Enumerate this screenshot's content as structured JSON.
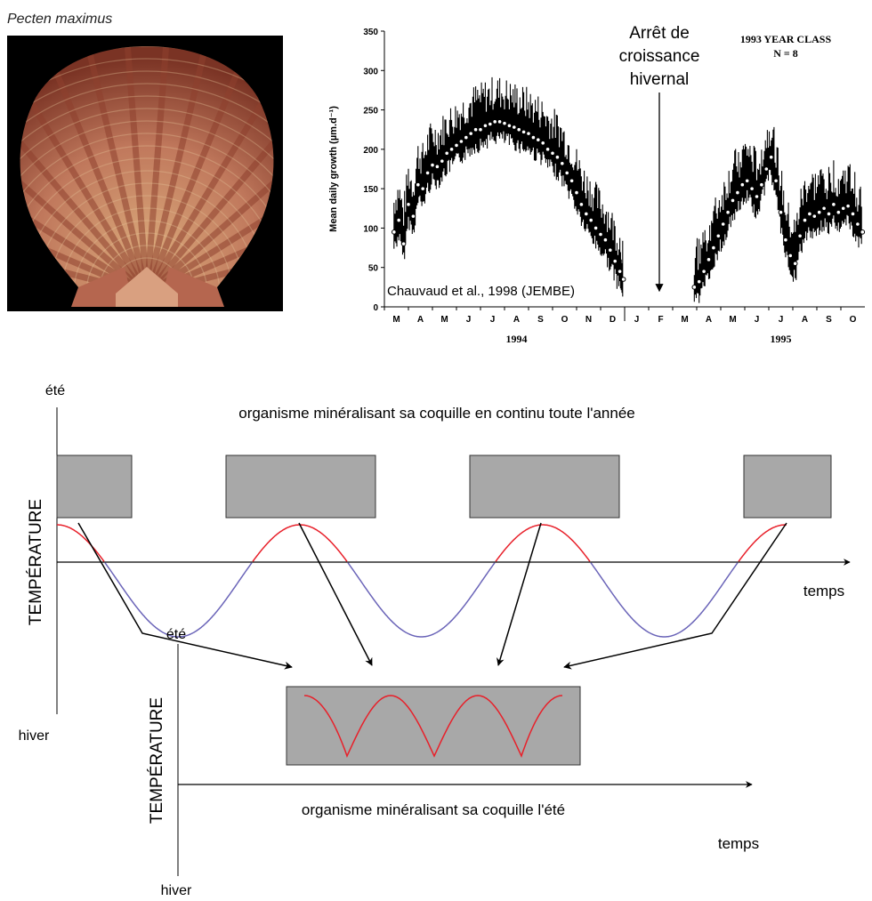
{
  "species": {
    "name": "Pecten maximus",
    "photo_bg": "#000000",
    "shell_colors": [
      "#b5664f",
      "#e6c59c",
      "#8e3f2e",
      "#d9a87a"
    ]
  },
  "chart_data": {
    "type": "line",
    "ylabel": "Mean daily growth (µm.d⁻¹)",
    "ylim": [
      0,
      350
    ],
    "yticks": [
      "0",
      "50",
      "100",
      "150",
      "200",
      "250",
      "300",
      "350"
    ],
    "months": [
      "M",
      "A",
      "M",
      "J",
      "J",
      "A",
      "S",
      "O",
      "N",
      "D",
      "J",
      "F",
      "M",
      "A",
      "M",
      "J",
      "J",
      "A",
      "S",
      "O"
    ],
    "years": [
      {
        "label": "1994",
        "center_month": 5.5
      },
      {
        "label": "1995",
        "center_month": 16.5
      }
    ],
    "annotation_lines": [
      "1993 YEAR CLASS",
      "N = 8"
    ],
    "citation": "Chauvaud et al., 1998 (JEMBE)",
    "arrest": {
      "lines": [
        "Arrêt de",
        "croissance",
        "hivernal"
      ],
      "month": 11.3,
      "value": 20
    },
    "series": [
      {
        "segment": "1994",
        "points": [
          [
            0.4,
            95
          ],
          [
            0.6,
            110
          ],
          [
            0.8,
            80
          ],
          [
            1.0,
            130
          ],
          [
            1.2,
            115
          ],
          [
            1.4,
            155
          ],
          [
            1.6,
            150
          ],
          [
            1.8,
            170
          ],
          [
            2.0,
            180
          ],
          [
            2.2,
            178
          ],
          [
            2.4,
            185
          ],
          [
            2.6,
            195
          ],
          [
            2.8,
            200
          ],
          [
            3.0,
            205
          ],
          [
            3.2,
            210
          ],
          [
            3.4,
            215
          ],
          [
            3.6,
            220
          ],
          [
            3.8,
            225
          ],
          [
            4.0,
            225
          ],
          [
            4.2,
            230
          ],
          [
            4.4,
            232
          ],
          [
            4.6,
            235
          ],
          [
            4.8,
            235
          ],
          [
            5.0,
            233
          ],
          [
            5.2,
            230
          ],
          [
            5.4,
            228
          ],
          [
            5.6,
            225
          ],
          [
            5.8,
            222
          ],
          [
            6.0,
            220
          ],
          [
            6.2,
            215
          ],
          [
            6.4,
            212
          ],
          [
            6.6,
            208
          ],
          [
            6.8,
            200
          ],
          [
            7.0,
            195
          ],
          [
            7.2,
            190
          ],
          [
            7.4,
            182
          ],
          [
            7.6,
            170
          ],
          [
            7.8,
            160
          ],
          [
            8.0,
            145
          ],
          [
            8.2,
            130
          ],
          [
            8.4,
            118
          ],
          [
            8.6,
            110
          ],
          [
            8.8,
            100
          ],
          [
            9.0,
            92
          ],
          [
            9.2,
            85
          ],
          [
            9.4,
            72
          ],
          [
            9.6,
            58
          ],
          [
            9.8,
            45
          ],
          [
            9.95,
            35
          ]
        ]
      },
      {
        "segment": "1995",
        "points": [
          [
            12.9,
            25
          ],
          [
            13.1,
            32
          ],
          [
            13.3,
            45
          ],
          [
            13.5,
            60
          ],
          [
            13.7,
            75
          ],
          [
            13.9,
            90
          ],
          [
            14.1,
            105
          ],
          [
            14.3,
            120
          ],
          [
            14.5,
            135
          ],
          [
            14.7,
            145
          ],
          [
            14.9,
            155
          ],
          [
            15.1,
            160
          ],
          [
            15.3,
            150
          ],
          [
            15.5,
            140
          ],
          [
            15.7,
            155
          ],
          [
            15.9,
            175
          ],
          [
            16.1,
            190
          ],
          [
            16.3,
            160
          ],
          [
            16.5,
            120
          ],
          [
            16.7,
            85
          ],
          [
            16.9,
            65
          ],
          [
            17.1,
            55
          ],
          [
            17.3,
            90
          ],
          [
            17.5,
            110
          ],
          [
            17.7,
            118
          ],
          [
            17.9,
            115
          ],
          [
            18.1,
            120
          ],
          [
            18.3,
            125
          ],
          [
            18.5,
            118
          ],
          [
            18.7,
            130
          ],
          [
            18.9,
            120
          ],
          [
            19.1,
            125
          ],
          [
            19.3,
            128
          ],
          [
            19.5,
            118
          ],
          [
            19.7,
            105
          ],
          [
            19.9,
            95
          ]
        ]
      }
    ]
  },
  "diagram": {
    "top": {
      "axis_label": "TEMPÉRATURE",
      "ete": "été",
      "hiver": "hiver",
      "temps": "temps",
      "caption": "organisme minéralisant sa coquille en continu toute l'année"
    },
    "bottom": {
      "axis_label": "TEMPÉRATURE",
      "ete": "été",
      "hiver": "hiver",
      "temps": "temps",
      "caption": "organisme minéralisant sa coquille l'été"
    },
    "colors": {
      "warm": "#e8202a",
      "cold": "#6a64b8",
      "box_fill": "#a8a8a8",
      "axis": "#000000"
    }
  }
}
